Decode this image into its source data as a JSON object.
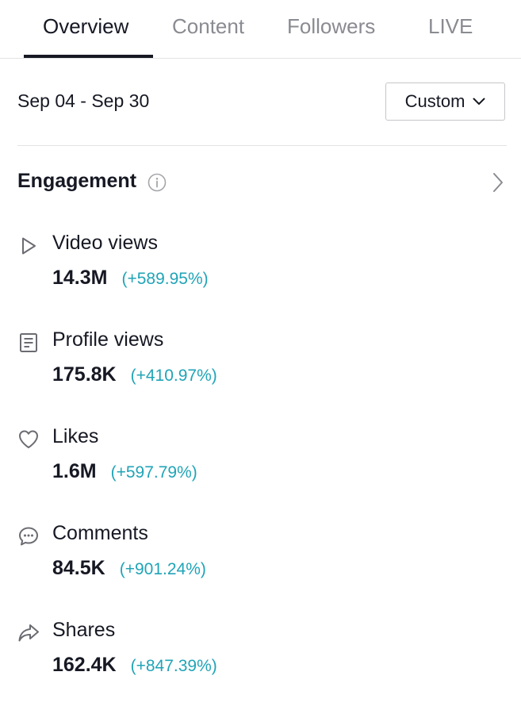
{
  "tabs": [
    {
      "label": "Overview",
      "active": true
    },
    {
      "label": "Content",
      "active": false
    },
    {
      "label": "Followers",
      "active": false
    },
    {
      "label": "LIVE",
      "active": false
    }
  ],
  "date_range": "Sep 04 - Sep 30",
  "date_filter": {
    "label": "Custom",
    "icon": "chevron-down-icon"
  },
  "engagement": {
    "title": "Engagement",
    "info_icon": "info-icon",
    "nav_icon": "chevron-right-icon",
    "metrics": [
      {
        "icon": "play-icon",
        "label": "Video views",
        "value": "14.3M",
        "change": "(+589.95%)"
      },
      {
        "icon": "profile-document-icon",
        "label": "Profile views",
        "value": "175.8K",
        "change": "(+410.97%)"
      },
      {
        "icon": "heart-icon",
        "label": "Likes",
        "value": "1.6M",
        "change": "(+597.79%)"
      },
      {
        "icon": "comment-bubble-icon",
        "label": "Comments",
        "value": "84.5K",
        "change": "(+901.24%)"
      },
      {
        "icon": "share-arrow-icon",
        "label": "Shares",
        "value": "162.4K",
        "change": "(+847.39%)"
      }
    ]
  },
  "colors": {
    "text_primary": "#161823",
    "text_secondary": "#8a8b91",
    "positive_change": "#20a4b7",
    "divider": "#e3e3e4"
  }
}
